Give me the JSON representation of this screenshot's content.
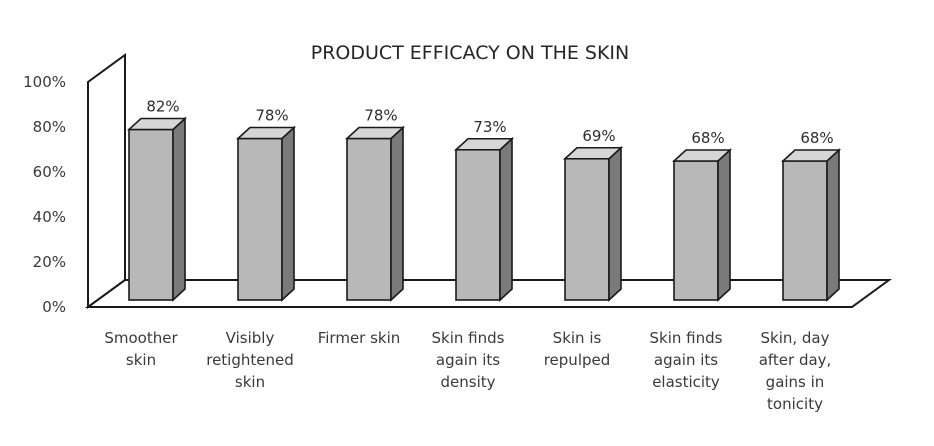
{
  "chart_data": {
    "type": "bar",
    "title": "PRODUCT EFFICACY ON THE SKIN",
    "xlabel": "",
    "ylabel": "",
    "ylim": [
      0,
      100
    ],
    "y_ticks": [
      "0%",
      "20%",
      "40%",
      "60%",
      "80%",
      "100%"
    ],
    "categories": [
      [
        "Smoother",
        "skin"
      ],
      [
        "Visibly",
        "retightened",
        "skin"
      ],
      [
        "Firmer skin"
      ],
      [
        "Skin finds",
        "again its",
        "density"
      ],
      [
        "Skin is",
        "repulped"
      ],
      [
        "Skin finds",
        "again its",
        "elasticity"
      ],
      [
        "Skin, day",
        "after day,",
        "gains in",
        "tonicity"
      ]
    ],
    "values": [
      82,
      78,
      78,
      73,
      69,
      68,
      68
    ],
    "value_labels": [
      "82%",
      "78%",
      "78%",
      "73%",
      "69%",
      "68%",
      "68%"
    ],
    "grid": false,
    "colors": {
      "bar_front": "#b8b8b8",
      "bar_side": "#7a7a7a",
      "bar_top": "#d6d6d6",
      "edge": "#1a1a1a"
    }
  }
}
